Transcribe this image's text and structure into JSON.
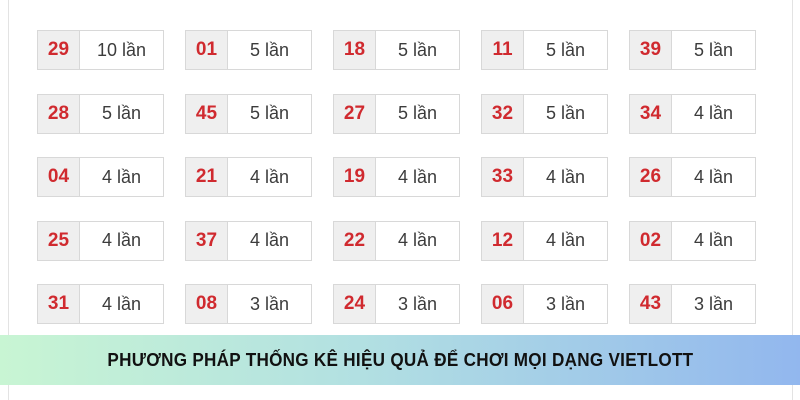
{
  "theme": {
    "accent_red": "#d02a2f",
    "number_bg": "#efefef",
    "cell_border": "#d8d8d8",
    "banner_gradient_start": "#c8f5d3",
    "banner_gradient_end": "#92b7ee"
  },
  "stats": {
    "unit": "lần",
    "cells": [
      {
        "number": "29",
        "count": "10 lần"
      },
      {
        "number": "01",
        "count": "5 lần"
      },
      {
        "number": "18",
        "count": "5 lần"
      },
      {
        "number": "11",
        "count": "5 lần"
      },
      {
        "number": "39",
        "count": "5 lần"
      },
      {
        "number": "28",
        "count": "5 lần"
      },
      {
        "number": "45",
        "count": "5 lần"
      },
      {
        "number": "27",
        "count": "5 lần"
      },
      {
        "number": "32",
        "count": "5 lần"
      },
      {
        "number": "34",
        "count": "4 lần"
      },
      {
        "number": "04",
        "count": "4 lần"
      },
      {
        "number": "21",
        "count": "4 lần"
      },
      {
        "number": "19",
        "count": "4 lần"
      },
      {
        "number": "33",
        "count": "4 lần"
      },
      {
        "number": "26",
        "count": "4 lần"
      },
      {
        "number": "25",
        "count": "4 lần"
      },
      {
        "number": "37",
        "count": "4 lần"
      },
      {
        "number": "22",
        "count": "4 lần"
      },
      {
        "number": "12",
        "count": "4 lần"
      },
      {
        "number": "02",
        "count": "4 lần"
      },
      {
        "number": "31",
        "count": "4 lần"
      },
      {
        "number": "08",
        "count": "3 lần"
      },
      {
        "number": "24",
        "count": "3 lần"
      },
      {
        "number": "06",
        "count": "3 lần"
      },
      {
        "number": "43",
        "count": "3 lần"
      }
    ]
  },
  "banner": {
    "text": "PHƯƠNG PHÁP THỐNG KÊ HIỆU QUẢ ĐỂ CHƠI MỌI DẠNG VIETLOTT"
  }
}
